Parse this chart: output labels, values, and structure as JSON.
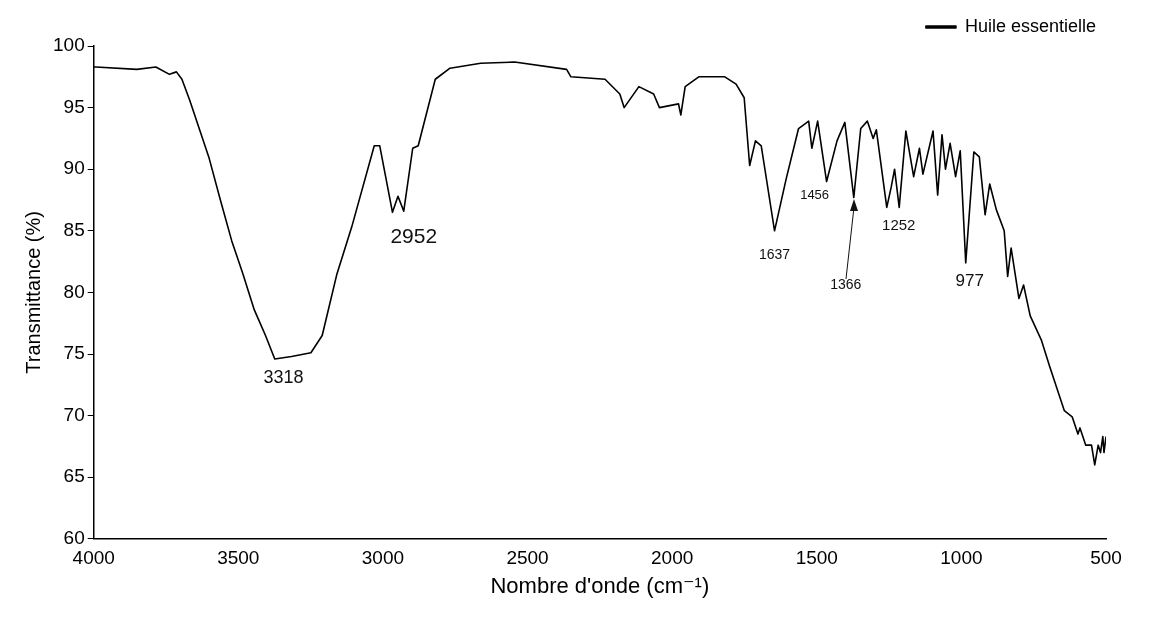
{
  "chart_data": {
    "type": "line",
    "xlabel": "Nombre d'onde (cm⁻¹)",
    "ylabel": "Transmittance (%)",
    "xlim": [
      4000,
      500
    ],
    "xticks": [
      4000,
      3500,
      3000,
      2500,
      2000,
      1500,
      1000,
      500
    ],
    "ylim": [
      60,
      100
    ],
    "yticks": [
      60,
      65,
      70,
      75,
      80,
      85,
      90,
      95,
      100
    ],
    "grid": false,
    "legend": "top right",
    "marker": "none",
    "line_style": "solid",
    "series": [
      {
        "name": "Huile essentielle",
        "color": "#000000",
        "x": [
          4000,
          3992,
          3851,
          3785,
          3738,
          3714,
          3695,
          3668,
          3628,
          3601,
          3562,
          3523,
          3484,
          3445,
          3406,
          3374,
          3316,
          3249,
          3210,
          3159,
          3108,
          3030,
          3011,
          2967,
          2948,
          2928,
          2897,
          2878,
          2819,
          2768,
          2662,
          2545,
          2365,
          2350,
          2232,
          2181,
          2166,
          2115,
          2064,
          2044,
          1978,
          1970,
          1955,
          1908,
          1818,
          1779,
          1751,
          1732,
          1712,
          1692,
          1646,
          1606,
          1563,
          1528,
          1517,
          1497,
          1466,
          1430,
          1403,
          1372,
          1348,
          1325,
          1305,
          1294,
          1258,
          1243,
          1231,
          1215,
          1192,
          1165,
          1145,
          1133,
          1098,
          1082,
          1067,
          1055,
          1039,
          1020,
          1004,
          985,
          957,
          938,
          918,
          902,
          879,
          852,
          840,
          828,
          801,
          785,
          762,
          723,
          695,
          644,
          617,
          597,
          590,
          570,
          550,
          539,
          527,
          519,
          511,
          507,
          500
        ],
        "values": [
          98.3,
          98.3,
          98.1,
          98.3,
          97.7,
          97.9,
          97.3,
          95.6,
          92.8,
          90.9,
          87.5,
          84.2,
          81.5,
          78.6,
          76.5,
          74.6,
          74.8,
          75.1,
          76.5,
          81.5,
          85.3,
          91.9,
          91.9,
          86.5,
          87.8,
          86.6,
          91.7,
          91.9,
          97.3,
          98.2,
          98.6,
          98.7,
          98.1,
          97.5,
          97.3,
          96.1,
          95.0,
          96.7,
          96.1,
          95.0,
          95.3,
          94.4,
          96.7,
          97.5,
          97.5,
          96.9,
          95.8,
          90.3,
          92.3,
          91.9,
          85.0,
          89.2,
          93.3,
          93.9,
          91.7,
          93.9,
          89.0,
          92.3,
          93.8,
          87.7,
          93.3,
          93.9,
          92.5,
          93.2,
          86.9,
          88.5,
          90.0,
          86.9,
          93.1,
          89.4,
          91.7,
          89.6,
          93.1,
          87.9,
          92.8,
          90.0,
          92.1,
          89.4,
          91.5,
          82.4,
          91.4,
          91.0,
          86.3,
          88.8,
          86.7,
          85.0,
          81.3,
          83.6,
          79.5,
          80.6,
          78.1,
          76.1,
          74.0,
          70.4,
          69.9,
          68.5,
          69.0,
          67.6,
          67.6,
          66.0,
          67.6,
          67.0,
          68.3,
          67.0,
          68.3
        ]
      }
    ],
    "annotations": [
      {
        "text": "3318",
        "x": 3316,
        "y": 74.8
      },
      {
        "text": "2952",
        "x": 2928,
        "y": 86.6
      },
      {
        "text": "1637",
        "x": 1646,
        "y": 85.0
      },
      {
        "text": "1456",
        "x": 1466,
        "y": 89.0
      },
      {
        "text": "1366",
        "x": 1372,
        "y": 87.7
      },
      {
        "text": "1252",
        "x": 1258,
        "y": 86.9
      },
      {
        "text": "977",
        "x": 985,
        "y": 82.4
      }
    ]
  }
}
